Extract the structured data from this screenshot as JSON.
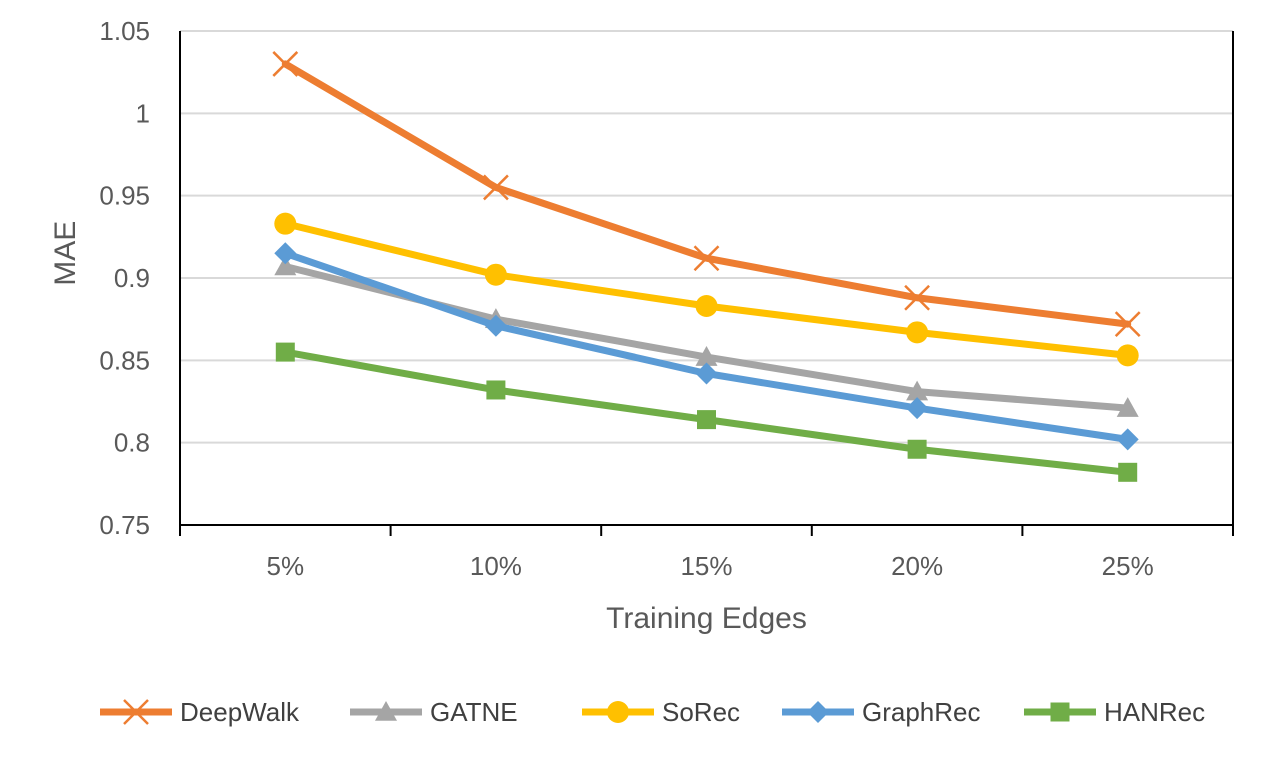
{
  "chart_data": {
    "type": "line",
    "title": "",
    "xlabel": "Training Edges",
    "ylabel": "MAE",
    "categories": [
      "5%",
      "10%",
      "15%",
      "20%",
      "25%"
    ],
    "ylim": [
      0.75,
      1.05
    ],
    "yticks": [
      0.75,
      0.8,
      0.85,
      0.9,
      0.95,
      1,
      1.05
    ],
    "ytick_labels": [
      "0.75",
      "0.8",
      "0.85",
      "0.9",
      "0.95",
      "1",
      "1.05"
    ],
    "grid": true,
    "legend_position": "bottom",
    "series": [
      {
        "name": "DeepWalk",
        "color": "#ED7D31",
        "marker": "x",
        "values": [
          1.03,
          0.955,
          0.912,
          0.888,
          0.872
        ]
      },
      {
        "name": "GATNE",
        "color": "#A5A5A5",
        "marker": "triangle",
        "values": [
          0.907,
          0.875,
          0.852,
          0.831,
          0.821
        ]
      },
      {
        "name": "SoRec",
        "color": "#FFC000",
        "marker": "circle",
        "values": [
          0.933,
          0.902,
          0.883,
          0.867,
          0.853
        ]
      },
      {
        "name": "GraphRec",
        "color": "#5B9BD5",
        "marker": "diamond",
        "values": [
          0.915,
          0.871,
          0.842,
          0.821,
          0.802
        ]
      },
      {
        "name": "HANRec",
        "color": "#70AD47",
        "marker": "square",
        "values": [
          0.855,
          0.832,
          0.814,
          0.796,
          0.782
        ]
      }
    ]
  }
}
